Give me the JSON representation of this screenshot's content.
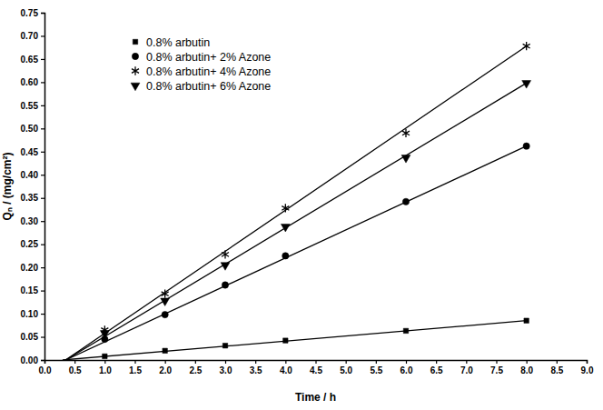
{
  "chart_data": {
    "type": "line",
    "x_label": "Time / h",
    "y_label": "Qₙ / (mg/cm²)",
    "xlim": [
      0,
      9
    ],
    "ylim": [
      0,
      0.75
    ],
    "xticks": [
      {
        "value": 0,
        "label": "0.0"
      },
      0.5,
      {
        "value": 1,
        "label": "1.0"
      },
      1.5,
      {
        "value": 2,
        "label": "2.0"
      },
      2.5,
      {
        "value": 3,
        "label": "3.0"
      },
      3.5,
      {
        "value": 4,
        "label": "4.0"
      },
      4.5,
      {
        "value": 5,
        "label": "5.0"
      },
      5.5,
      {
        "value": 6,
        "label": "6.0"
      },
      6.5,
      {
        "value": 7,
        "label": "7.0"
      },
      7.5,
      {
        "value": 8,
        "label": "8.0"
      },
      8.5,
      {
        "value": 9,
        "label": "9.0"
      }
    ],
    "yticks": [
      {
        "value": 0,
        "label": "0.00"
      },
      0.05,
      {
        "value": 0.1,
        "label": "0.10"
      },
      0.15,
      {
        "value": 0.2,
        "label": "0.20"
      },
      0.25,
      {
        "value": 0.3,
        "label": "0.30"
      },
      0.35,
      {
        "value": 0.4,
        "label": "0.40"
      },
      0.45,
      {
        "value": 0.5,
        "label": "0.50"
      },
      0.55,
      {
        "value": 0.6,
        "label": "0.60"
      },
      0.65,
      {
        "value": 0.7,
        "label": "0.70"
      },
      0.75
    ],
    "legend": "top-left",
    "series": [
      {
        "name": "0.8% arbutin",
        "color": "#000000",
        "marker": "square",
        "x": [
          1,
          2,
          3,
          4,
          6,
          8
        ],
        "values": [
          0.008,
          0.02,
          0.031,
          0.042,
          0.063,
          0.085
        ],
        "fit": {
          "x": [
            0.3,
            8
          ],
          "values": [
            0,
            0.085
          ]
        }
      },
      {
        "name": "0.8% arbutin+ 2% Azone",
        "color": "#000000",
        "marker": "circle",
        "x": [
          1,
          2,
          3,
          4,
          6,
          8
        ],
        "values": [
          0.045,
          0.098,
          0.162,
          0.225,
          0.342,
          0.462
        ],
        "fit": {
          "x": [
            0.35,
            8
          ],
          "values": [
            0,
            0.462
          ]
        }
      },
      {
        "name": "0.8% arbutin+ 4% Azone",
        "color": "#000000",
        "marker": "asterisk",
        "x": [
          1,
          2,
          3,
          4,
          6,
          8
        ],
        "values": [
          0.065,
          0.143,
          0.228,
          0.328,
          0.49,
          0.678
        ],
        "fit": {
          "x": [
            0.35,
            8
          ],
          "values": [
            0,
            0.678
          ]
        }
      },
      {
        "name": "0.8% arbutin+ 6% Azone",
        "color": "#000000",
        "marker": "triangle-down",
        "x": [
          1,
          2,
          3,
          4,
          6,
          8
        ],
        "values": [
          0.058,
          0.128,
          0.205,
          0.288,
          0.437,
          0.598
        ],
        "fit": {
          "x": [
            0.35,
            8
          ],
          "values": [
            0,
            0.598
          ]
        }
      }
    ]
  }
}
